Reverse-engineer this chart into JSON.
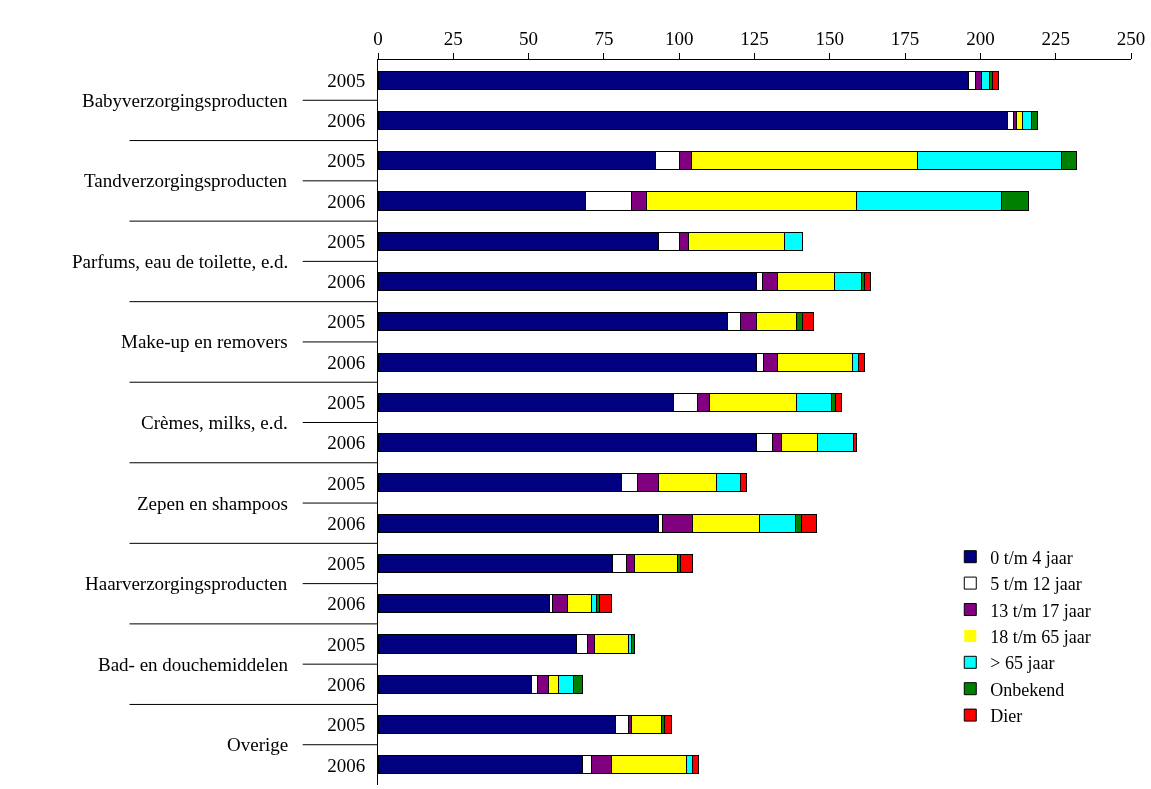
{
  "chart_data": {
    "type": "bar",
    "orientation": "horizontal",
    "stacked": true,
    "categories": [
      "2005",
      "2006",
      "2005",
      "2006",
      "2005",
      "2006",
      "2005",
      "2006",
      "2005",
      "2006",
      "2005",
      "2006",
      "2005",
      "2006",
      "2005",
      "2006",
      "2005",
      "2006"
    ],
    "annotations": [
      "Babyverzorgingsproducten",
      "Tandverzorgingsproducten",
      "Parfums, eau de toilette, e.d.",
      "Make-up en removers",
      "Crèmes, milks, e.d.",
      "Zepen en shampoos",
      "Haarverzorgingsproducten",
      "Bad- en douchemiddelen",
      "Overige"
    ],
    "series": [
      {
        "name": "0 t/m 4 jaar",
        "color": "#000080",
        "values": [
          196,
          209,
          92,
          69,
          93,
          125.5,
          116,
          125.5,
          98,
          125.5,
          81,
          93,
          78,
          57,
          66,
          51,
          79,
          68
        ]
      },
      {
        "name": "5 t/m 12 jaar",
        "color": "#ffffff",
        "values": [
          2.5,
          2,
          8,
          15,
          7,
          2,
          4.5,
          2.5,
          8,
          5.5,
          5,
          1.5,
          4.5,
          1,
          3.5,
          2,
          4,
          3
        ]
      },
      {
        "name": "13 t/m 17 jaar",
        "color": "#800080",
        "values": [
          2,
          1,
          4,
          5,
          3,
          5,
          5,
          4.5,
          4,
          3,
          7,
          10,
          2.5,
          5,
          2.5,
          3.5,
          1,
          6.5
        ]
      },
      {
        "name": "18 t/m 65 jaar",
        "color": "#ffff00",
        "values": [
          0,
          2,
          75,
          70,
          32,
          19,
          13.5,
          25,
          29,
          12,
          19.5,
          22,
          14.5,
          8,
          11,
          3.5,
          10,
          25
        ]
      },
      {
        "name": "> 65 jaar",
        "color": "#00ffff",
        "values": [
          2.5,
          3,
          48,
          48,
          6,
          9,
          0,
          2,
          11.5,
          12,
          8,
          12,
          0,
          1.5,
          1,
          5,
          0,
          2
        ]
      },
      {
        "name": "Onbekend",
        "color": "#008000",
        "values": [
          1,
          2,
          5,
          9,
          0,
          1,
          2,
          0,
          1.5,
          0,
          0,
          2,
          1,
          1,
          1,
          3,
          1,
          0
        ]
      },
      {
        "name": "Dier",
        "color": "#ff0000",
        "values": [
          2,
          0,
          0,
          0,
          0,
          2,
          3.5,
          2,
          2,
          1,
          2,
          5,
          4,
          4,
          0,
          0,
          2.5,
          2
        ]
      }
    ],
    "xlim": [
      0,
      250
    ],
    "xticks": [
      0,
      25,
      50,
      75,
      100,
      125,
      150,
      175,
      200,
      225,
      250
    ],
    "grid": false,
    "legend": "bottom right"
  }
}
